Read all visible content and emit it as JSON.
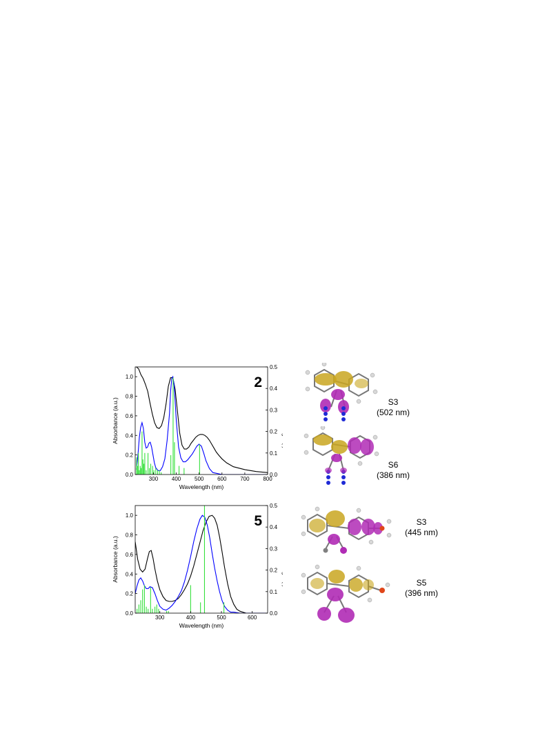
{
  "chart_data": [
    {
      "type": "line",
      "compound_label": "2",
      "xlabel": "Wavelength (nm)",
      "ylabel_left": "Absorbance (a.u.)",
      "ylabel_right": "Oscillator Strength (f)",
      "xlim": [
        220,
        800
      ],
      "ylim_left": [
        0,
        1.1
      ],
      "ylim_right": [
        0,
        0.5
      ],
      "x_ticks": [
        300,
        400,
        500,
        600,
        700,
        800
      ],
      "y_ticks_left": [
        "0.0",
        "0.2",
        "0.4",
        "0.6",
        "0.8",
        "1.0"
      ],
      "y_ticks_right": [
        "0.0",
        "0.1",
        "0.2",
        "0.3",
        "0.4",
        "0.5"
      ],
      "series": [
        {
          "color": "#000000",
          "x": [
            225,
            235,
            245,
            255,
            265,
            275,
            285,
            295,
            305,
            315,
            325,
            335,
            345,
            355,
            365,
            375,
            385,
            395,
            405,
            415,
            425,
            435,
            445,
            455,
            465,
            475,
            485,
            495,
            505,
            515,
            525,
            535,
            545,
            555,
            565,
            575,
            585,
            600,
            620,
            650,
            700,
            750,
            800
          ],
          "y": [
            1.1,
            1.08,
            1.02,
            0.98,
            0.92,
            0.85,
            0.73,
            0.62,
            0.53,
            0.48,
            0.47,
            0.5,
            0.58,
            0.72,
            0.9,
            0.99,
            0.99,
            0.87,
            0.65,
            0.42,
            0.3,
            0.26,
            0.26,
            0.28,
            0.32,
            0.35,
            0.38,
            0.4,
            0.41,
            0.41,
            0.4,
            0.38,
            0.35,
            0.31,
            0.27,
            0.23,
            0.2,
            0.16,
            0.12,
            0.08,
            0.05,
            0.03,
            0.02
          ]
        },
        {
          "color": "#0000ff",
          "x": [
            225,
            232,
            238,
            244,
            250,
            256,
            262,
            268,
            274,
            280,
            286,
            292,
            298,
            304,
            310,
            320,
            330,
            340,
            350,
            360,
            370,
            375,
            380,
            385,
            390,
            395,
            400,
            410,
            420,
            430,
            440,
            450,
            460,
            470,
            480,
            490,
            500,
            510,
            520,
            530,
            545,
            560,
            580,
            600,
            650,
            700,
            800
          ],
          "y": [
            0.05,
            0.2,
            0.38,
            0.48,
            0.53,
            0.47,
            0.33,
            0.27,
            0.28,
            0.32,
            0.33,
            0.28,
            0.2,
            0.12,
            0.07,
            0.04,
            0.04,
            0.08,
            0.16,
            0.35,
            0.62,
            0.85,
            0.98,
            1.0,
            0.92,
            0.75,
            0.55,
            0.28,
            0.17,
            0.13,
            0.13,
            0.15,
            0.18,
            0.21,
            0.25,
            0.29,
            0.31,
            0.29,
            0.22,
            0.14,
            0.06,
            0.02,
            0.01,
            0.0,
            0.0,
            0.0,
            0.0
          ]
        },
        {
          "color": "#33e03a",
          "type": "stick",
          "x": [
            226,
            230,
            234,
            238,
            242,
            246,
            250,
            254,
            258,
            262,
            268,
            276,
            282,
            288,
            296,
            302,
            310,
            318,
            326,
            334,
            376,
            386,
            392,
            412,
            434,
            502
          ],
          "y": [
            0.08,
            0.04,
            0.1,
            0.02,
            0.04,
            0.03,
            0.2,
            0.07,
            0.05,
            0.1,
            0.02,
            0.1,
            0.03,
            0.05,
            0.04,
            0.02,
            0.03,
            0.02,
            0.02,
            0.01,
            0.09,
            0.45,
            0.15,
            0.04,
            0.03,
            0.14
          ]
        }
      ]
    },
    {
      "type": "line",
      "compound_label": "5",
      "xlabel": "Wavelength (nm)",
      "ylabel_left": "Absorbance (a.u.)",
      "ylabel_right": "Oscillator Strength (f)",
      "xlim": [
        220,
        650
      ],
      "ylim_left": [
        0,
        1.1
      ],
      "ylim_right": [
        0,
        0.5
      ],
      "x_ticks": [
        300,
        400,
        500,
        600
      ],
      "y_ticks_left": [
        "0.0",
        "0.2",
        "0.4",
        "0.6",
        "0.8",
        "1.0"
      ],
      "y_ticks_right": [
        "0.0",
        "0.1",
        "0.2",
        "0.3",
        "0.4",
        "0.5"
      ],
      "series": [
        {
          "color": "#000000",
          "x": [
            220,
            228,
            236,
            244,
            252,
            260,
            266,
            272,
            278,
            284,
            292,
            300,
            310,
            320,
            330,
            340,
            350,
            360,
            370,
            380,
            390,
            400,
            410,
            420,
            430,
            440,
            450,
            460,
            470,
            478,
            486,
            494,
            502,
            510,
            520,
            530,
            540,
            550,
            560,
            570,
            580,
            600,
            650
          ],
          "y": [
            0.73,
            0.55,
            0.45,
            0.42,
            0.45,
            0.56,
            0.63,
            0.64,
            0.56,
            0.45,
            0.33,
            0.24,
            0.17,
            0.13,
            0.12,
            0.12,
            0.13,
            0.15,
            0.19,
            0.24,
            0.3,
            0.38,
            0.48,
            0.6,
            0.72,
            0.84,
            0.93,
            0.99,
            1.0,
            0.97,
            0.9,
            0.78,
            0.63,
            0.47,
            0.3,
            0.17,
            0.09,
            0.04,
            0.02,
            0.01,
            0.0,
            0.0,
            0.0
          ]
        },
        {
          "color": "#0000ff",
          "x": [
            220,
            226,
            232,
            238,
            244,
            250,
            256,
            262,
            268,
            276,
            284,
            292,
            300,
            310,
            320,
            330,
            340,
            350,
            360,
            370,
            380,
            390,
            400,
            410,
            420,
            430,
            438,
            446,
            454,
            462,
            470,
            478,
            486,
            494,
            502,
            510,
            520,
            530,
            540,
            560,
            580,
            600,
            650
          ],
          "y": [
            0.2,
            0.28,
            0.34,
            0.36,
            0.33,
            0.28,
            0.25,
            0.25,
            0.27,
            0.26,
            0.2,
            0.13,
            0.07,
            0.04,
            0.03,
            0.05,
            0.08,
            0.12,
            0.17,
            0.23,
            0.32,
            0.44,
            0.58,
            0.73,
            0.86,
            0.96,
            1.0,
            0.98,
            0.9,
            0.77,
            0.61,
            0.46,
            0.33,
            0.22,
            0.13,
            0.07,
            0.03,
            0.01,
            0.01,
            0.0,
            0.0,
            0.0,
            0.0
          ]
        },
        {
          "color": "#33e03a",
          "type": "stick",
          "x": [
            226,
            232,
            238,
            244,
            250,
            256,
            262,
            270,
            276,
            284,
            290,
            296,
            322,
            328,
            400,
            432,
            445,
            508
          ],
          "y": [
            0.02,
            0.04,
            0.06,
            0.11,
            0.13,
            0.03,
            0.02,
            0.12,
            0.02,
            0.03,
            0.04,
            0.02,
            0.01,
            0.01,
            0.13,
            0.05,
            0.5,
            0.05
          ]
        }
      ]
    }
  ],
  "states": [
    {
      "name": "S3",
      "wavelength": "(502 nm)"
    },
    {
      "name": "S6",
      "wavelength": "(386 nm)"
    },
    {
      "name": "S3",
      "wavelength": "(445 nm)"
    },
    {
      "name": "S5",
      "wavelength": "(396 nm)"
    }
  ],
  "orbital_colors": {
    "positive": "#c9a620",
    "negative": "#b02bb5",
    "nitrogen": "#1f2bd6",
    "hydrogen": "#d8d8d8",
    "carbon": "#808080"
  }
}
